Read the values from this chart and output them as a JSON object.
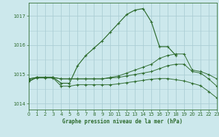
{
  "title": "Graphe pression niveau de la mer (hPa)",
  "background_color": "#cce8ec",
  "grid_color": "#aacdd4",
  "line_color": "#2d6b2d",
  "xlim": [
    0,
    23
  ],
  "ylim": [
    1013.8,
    1017.45
  ],
  "yticks": [
    1014,
    1015,
    1016,
    1017
  ],
  "xticks": [
    0,
    1,
    2,
    3,
    4,
    5,
    6,
    7,
    8,
    9,
    10,
    11,
    12,
    13,
    14,
    15,
    16,
    17,
    18,
    19,
    20,
    21,
    22,
    23
  ],
  "series": [
    {
      "x": [
        0,
        1,
        2,
        3,
        4,
        5,
        6,
        7,
        8,
        9,
        10,
        11,
        12,
        13,
        14,
        15,
        16,
        17,
        18,
        19,
        20,
        21,
        22,
        23
      ],
      "y": [
        1014.75,
        1014.9,
        1014.9,
        1014.9,
        1014.7,
        1014.7,
        1015.3,
        1015.65,
        1015.9,
        1016.15,
        1016.45,
        1016.75,
        1017.05,
        1017.2,
        1017.25,
        1016.8,
        1015.95,
        1015.95,
        1015.65,
        null,
        null,
        null,
        null,
        null
      ]
    },
    {
      "x": [
        0,
        1,
        2,
        3,
        4,
        5,
        6,
        7,
        8,
        9,
        10,
        11,
        12,
        13,
        14,
        15,
        16,
        17,
        18,
        19,
        20,
        21,
        22,
        23
      ],
      "y": [
        1014.85,
        1014.9,
        1014.9,
        1014.9,
        1014.85,
        1014.85,
        1014.85,
        1014.85,
        1014.85,
        1014.85,
        1014.9,
        1014.95,
        1015.05,
        1015.15,
        1015.25,
        1015.35,
        1015.55,
        1015.65,
        1015.7,
        1015.7,
        1015.15,
        1015.1,
        1015.0,
        1014.85
      ]
    },
    {
      "x": [
        0,
        1,
        2,
        3,
        4,
        5,
        6,
        7,
        8,
        9,
        10,
        11,
        12,
        13,
        14,
        15,
        16,
        17,
        18,
        19,
        20,
        21,
        22,
        23
      ],
      "y": [
        1014.85,
        1014.9,
        1014.9,
        1014.9,
        1014.85,
        1014.85,
        1014.85,
        1014.85,
        1014.85,
        1014.85,
        1014.88,
        1014.9,
        1014.95,
        1015.0,
        1015.05,
        1015.1,
        1015.2,
        1015.3,
        1015.35,
        1015.35,
        1015.1,
        1015.05,
        1014.85,
        1014.6
      ]
    },
    {
      "x": [
        0,
        1,
        2,
        3,
        4,
        5,
        6,
        7,
        8,
        9,
        10,
        11,
        12,
        13,
        14,
        15,
        16,
        17,
        18,
        19,
        20,
        21,
        22,
        23
      ],
      "y": [
        1014.8,
        1014.88,
        1014.88,
        1014.88,
        1014.6,
        1014.6,
        1014.65,
        1014.65,
        1014.65,
        1014.65,
        1014.65,
        1014.68,
        1014.72,
        1014.76,
        1014.8,
        1014.84,
        1014.86,
        1014.86,
        1014.82,
        1014.78,
        1014.7,
        1014.62,
        1014.42,
        1014.2
      ]
    }
  ]
}
